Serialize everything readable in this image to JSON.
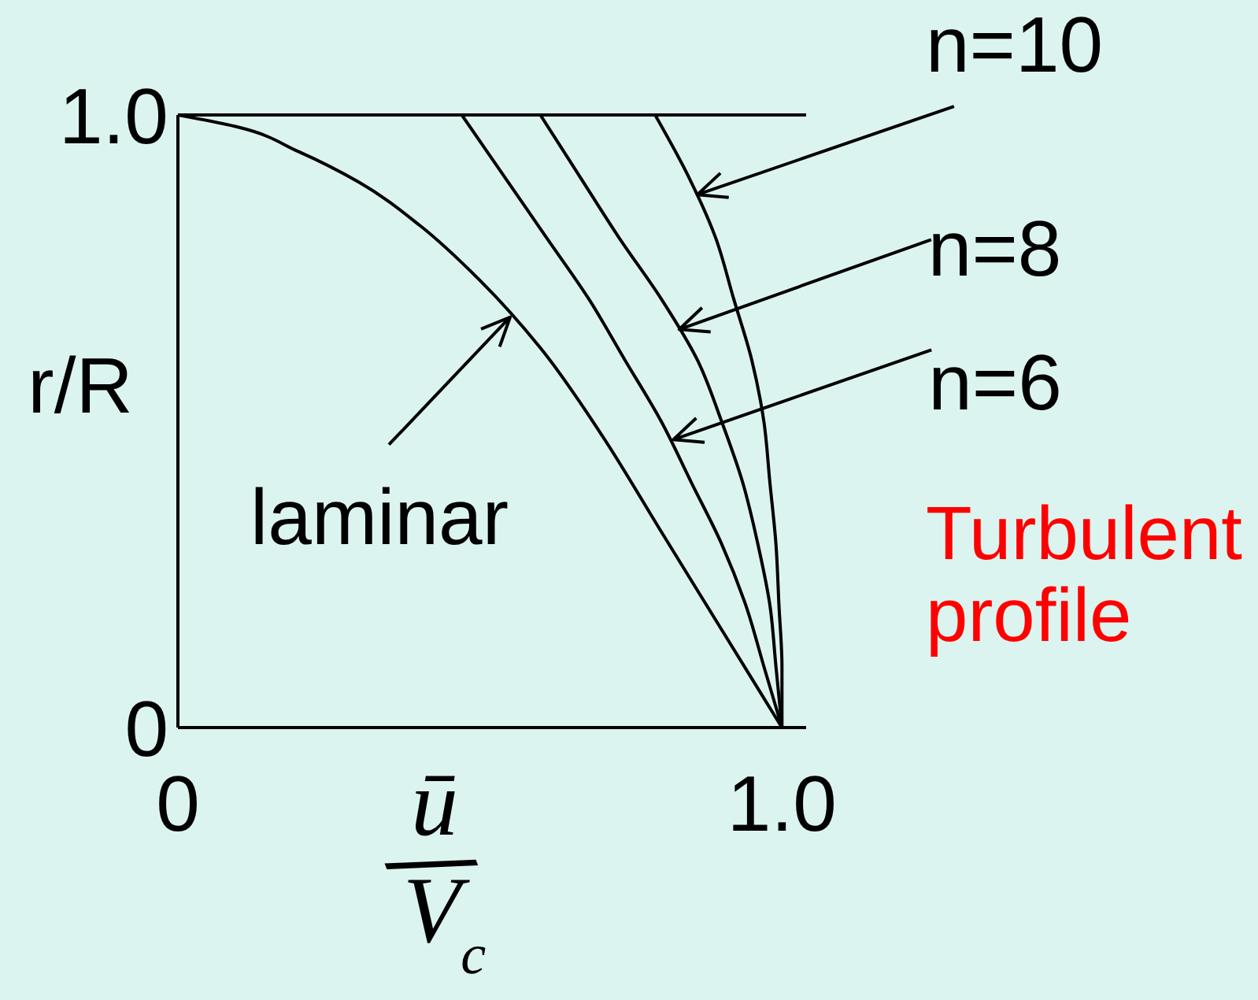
{
  "chart_data": {
    "type": "line",
    "xlabel": "ū/V$_{c}$",
    "ylabel": "r/R",
    "xlim": [
      0,
      1.04
    ],
    "xticks": [
      0,
      {
        "value": 1,
        "label": "1.0"
      }
    ],
    "ylim": [
      0,
      1
    ],
    "yticks": [
      0,
      {
        "value": 1,
        "label": "1.0"
      }
    ],
    "ref_lines": [
      {
        "axis": "y",
        "value": 1,
        "color": "#000000"
      }
    ],
    "series": [
      {
        "color": "#000000",
        "x": [
          0,
          0.1,
          0.2,
          0.3,
          0.4,
          0.5,
          0.6,
          0.7,
          0.8,
          0.9,
          1
        ],
        "values": [
          1,
          0.98,
          0.94,
          0.89,
          0.82,
          0.73,
          0.62,
          0.48,
          0.32,
          0.16,
          0
        ]
      },
      {
        "color": "#000000",
        "x": [
          0.47,
          0.54,
          0.61,
          0.68,
          0.74,
          0.8,
          0.85,
          0.9,
          0.94,
          0.97,
          1
        ],
        "values": [
          1,
          0.9,
          0.8,
          0.7,
          0.6,
          0.5,
          0.4,
          0.3,
          0.2,
          0.1,
          0
        ]
      },
      {
        "color": "#000000",
        "x": [
          0.6,
          0.665,
          0.73,
          0.8,
          0.86,
          0.9,
          0.935,
          0.96,
          0.98,
          0.99,
          1
        ],
        "values": [
          1,
          0.9,
          0.8,
          0.7,
          0.6,
          0.5,
          0.4,
          0.3,
          0.2,
          0.1,
          0
        ]
      },
      {
        "color": "#000000",
        "x": [
          0.79,
          0.845,
          0.89,
          0.92,
          0.95,
          0.97,
          0.98,
          0.99,
          0.995,
          1,
          1
        ],
        "values": [
          1,
          0.9,
          0.8,
          0.7,
          0.6,
          0.5,
          0.4,
          0.3,
          0.2,
          0.1,
          0
        ]
      }
    ],
    "annotations": [
      {
        "text": "n=10",
        "x": 0.86,
        "y": 0.87
      },
      {
        "text": "n=8",
        "x": 0.83,
        "y": 0.65
      },
      {
        "text": "n=6",
        "x": 0.82,
        "y": 0.47
      },
      {
        "text": "laminar",
        "x": 0.55,
        "y": 0.67
      },
      "Turbulent profile"
    ]
  }
}
